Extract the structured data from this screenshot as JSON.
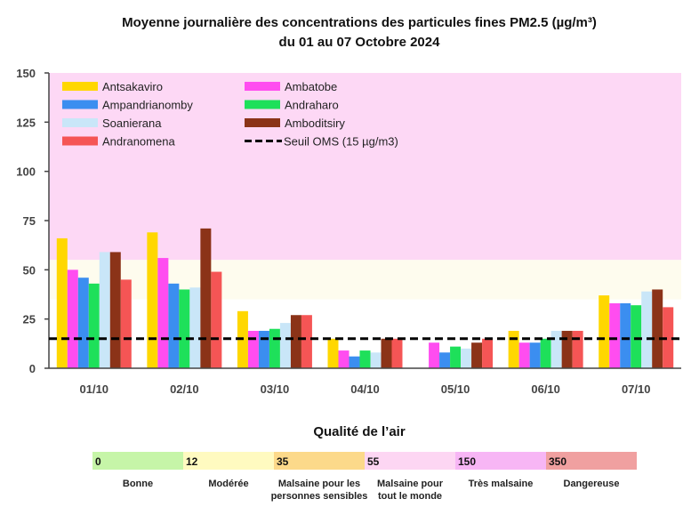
{
  "chart_data": {
    "type": "bar",
    "title": "Moyenne journalière des concentrations des particules fines PM2.5 (µg/m³)",
    "subtitle": "du 01 au 07 Octobre 2024",
    "xlabel": "",
    "ylabel": "",
    "ylim": [
      0,
      150
    ],
    "yticks": [
      0,
      25,
      50,
      75,
      100,
      125,
      150
    ],
    "categories": [
      "01/10",
      "02/10",
      "03/10",
      "04/10",
      "05/10",
      "06/10",
      "07/10"
    ],
    "legend_position": "top-left",
    "series": [
      {
        "name": "Antsakaviro",
        "color": "#FFD700",
        "values": [
          66,
          69,
          29,
          15,
          0,
          19,
          37
        ]
      },
      {
        "name": "Ambatobe",
        "color": "#FF4DF0",
        "values": [
          50,
          56,
          19,
          9,
          13,
          13,
          33
        ]
      },
      {
        "name": "Ampandrianomby",
        "color": "#3B8EF0",
        "values": [
          46,
          43,
          19,
          6,
          8,
          13,
          33
        ]
      },
      {
        "name": "Andraharo",
        "color": "#1EE05A",
        "values": [
          43,
          40,
          20,
          9,
          11,
          15,
          32
        ]
      },
      {
        "name": "Soanierana",
        "color": "#C9E6F8",
        "values": [
          59,
          41,
          23,
          8,
          10,
          19,
          39
        ]
      },
      {
        "name": "Amboditsiry",
        "color": "#8B3318",
        "values": [
          59,
          71,
          27,
          15,
          13,
          19,
          40
        ]
      },
      {
        "name": "Andranomena",
        "color": "#F55555",
        "values": [
          45,
          49,
          27,
          15,
          15,
          19,
          31
        ]
      }
    ],
    "threshold": {
      "name": "Seuil OMS (15 µg/m3)",
      "value": 15,
      "style": "dashed",
      "color": "#000000"
    },
    "background_bands": [
      {
        "from": 55,
        "to": 150,
        "color": "#FDD8F5"
      },
      {
        "from": 35,
        "to": 55,
        "color": "#FEFCEE"
      }
    ]
  },
  "air_quality_scale": {
    "title": "Qualité de l’air",
    "levels": [
      {
        "value": "0",
        "label": [
          "Bonne"
        ],
        "color": "#C6F5A8"
      },
      {
        "value": "12",
        "label": [
          "Modérée"
        ],
        "color": "#FFFAC0"
      },
      {
        "value": "35",
        "label": [
          "Malsaine pour les",
          "personnes sensibles"
        ],
        "color": "#FCD98A"
      },
      {
        "value": "55",
        "label": [
          "Malsaine pour",
          "tout le monde"
        ],
        "color": "#FDD6F3"
      },
      {
        "value": "150",
        "label": [
          "Très malsaine"
        ],
        "color": "#F7B6F5"
      },
      {
        "value": "350",
        "label": [
          "Dangereuse"
        ],
        "color": "#F0A0A0"
      }
    ]
  }
}
